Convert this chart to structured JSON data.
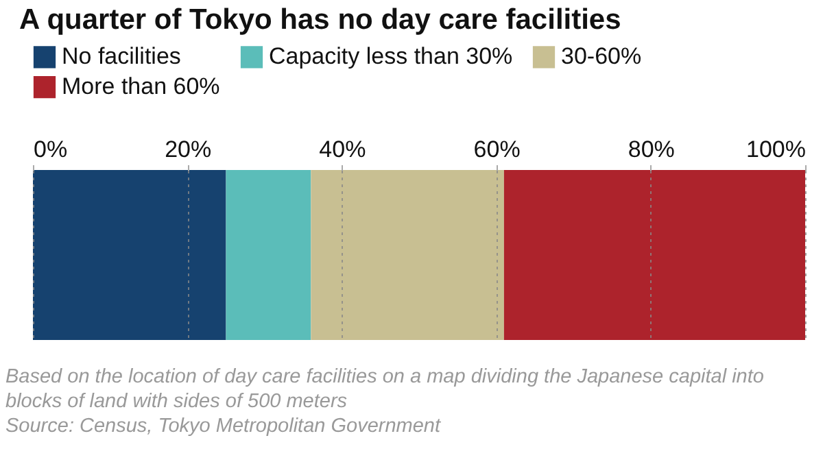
{
  "chart_data": {
    "type": "bar",
    "orientation": "horizontal",
    "stacked": true,
    "title": "A quarter of Tokyo has no day care facilities",
    "categories": [
      null
    ],
    "series": [
      {
        "name": "No facilities",
        "color": "#16426f",
        "values": [
          25
        ]
      },
      {
        "name": "Capacity less than 30%",
        "color": "#5bbdb9",
        "values": [
          11
        ]
      },
      {
        "name": "30-60%",
        "color": "#c8bf92",
        "values": [
          25
        ]
      },
      {
        "name": "More than 60%",
        "color": "#ad232c",
        "values": [
          39
        ]
      }
    ],
    "xlim": [
      0,
      100
    ],
    "xticks": [
      {
        "value": 0,
        "label": "0%"
      },
      {
        "value": 20,
        "label": "20%"
      },
      {
        "value": 40,
        "label": "40%"
      },
      {
        "value": 60,
        "label": "60%"
      },
      {
        "value": 80,
        "label": "80%"
      },
      {
        "value": 100,
        "label": "100%"
      }
    ],
    "grid": "x",
    "legend": "top left",
    "annotations": [
      "Based on the location of day care facilities on a map dividing the Japanese capital into blocks of land with sides of 500 meters",
      "Source: Census, Tokyo Metropolitan Government"
    ]
  }
}
